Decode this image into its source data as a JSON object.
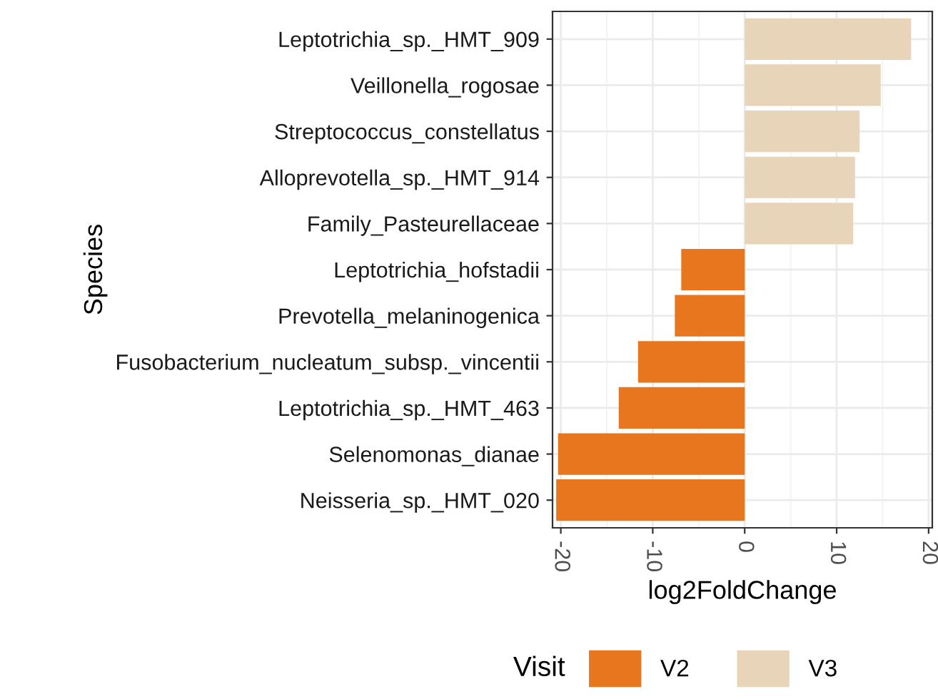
{
  "chart_data": {
    "type": "bar",
    "orientation": "horizontal",
    "xlabel": "log2FoldChange",
    "ylabel": "Species",
    "legend_title": "Visit",
    "legend": "bottom",
    "grid": true,
    "categories": [
      "Leptotrichia_sp._HMT_909",
      "Veillonella_rogosae",
      "Streptococcus_constellatus",
      "Alloprevotella_sp._HMT_914",
      "Family_Pasteurellaceae",
      "Leptotrichia_hofstadii",
      "Prevotella_melaninogenica",
      "Fusobacterium_nucleatum_subsp._vincentii",
      "Leptotrichia_sp._HMT_463",
      "Selenomonas_dianae",
      "Neisseria_sp._HMT_020"
    ],
    "series": [
      {
        "name": "V2",
        "color": "#e8761f",
        "values": [
          null,
          null,
          null,
          null,
          null,
          -6.9,
          -7.6,
          -11.6,
          -13.7,
          -20.3,
          -20.5
        ]
      },
      {
        "name": "V3",
        "color": "#e8d4b8",
        "values": [
          18.1,
          14.8,
          12.5,
          12.0,
          11.8,
          null,
          null,
          null,
          null,
          null,
          null
        ]
      }
    ],
    "xlim": [
      -20.9,
      20.4
    ],
    "xticks": [
      -20,
      -10,
      0,
      10,
      20
    ]
  }
}
